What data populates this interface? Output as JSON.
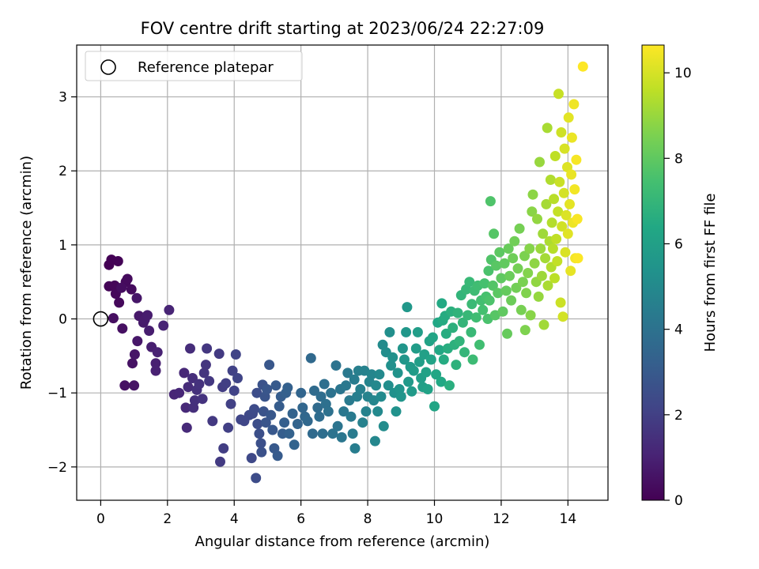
{
  "chart_data": {
    "type": "scatter",
    "title": "FOV centre drift starting at 2023/06/24 22:27:09",
    "xlabel": "Angular distance from reference (arcmin)",
    "ylabel": "Rotation from reference (arcmin)",
    "xlim": [
      -0.72,
      15.2
    ],
    "ylim": [
      -2.45,
      3.7
    ],
    "x_ticks": [
      0,
      2,
      4,
      6,
      8,
      10,
      12,
      14
    ],
    "y_ticks": [
      -2,
      -1,
      0,
      1,
      2,
      3
    ],
    "grid": true,
    "legend": {
      "placement": "top-left",
      "entries": [
        "Reference platepar"
      ]
    },
    "reference_point": {
      "x": 0,
      "y": 0
    },
    "colorbar": {
      "label": "Hours from first FF file",
      "range": [
        0,
        10.65
      ],
      "ticks": [
        0,
        2,
        4,
        6,
        8,
        10
      ],
      "colormap": "viridis"
    },
    "series": [
      {
        "points": [
          [
            0.25,
            0.73
          ],
          [
            0.32,
            0.8
          ],
          [
            0.52,
            0.78
          ],
          [
            0.25,
            0.44
          ],
          [
            0.42,
            0.45
          ],
          [
            0.45,
            0.34
          ],
          [
            0.55,
            0.22
          ],
          [
            0.75,
            0.5
          ],
          [
            0.8,
            0.54
          ],
          [
            0.92,
            0.4
          ],
          [
            0.62,
            0.42
          ],
          [
            0.38,
            0.01
          ],
          [
            0.65,
            -0.13
          ],
          [
            0.72,
            -0.9
          ],
          [
            0.95,
            -0.6
          ],
          [
            1.0,
            -0.9
          ],
          [
            1.02,
            -0.48
          ],
          [
            1.08,
            0.28
          ],
          [
            1.1,
            -0.3
          ],
          [
            1.15,
            0.04
          ],
          [
            1.28,
            -0.05
          ],
          [
            1.32,
            -0.01
          ],
          [
            1.4,
            0.05
          ],
          [
            1.45,
            -0.16
          ],
          [
            1.52,
            -0.38
          ],
          [
            1.65,
            -0.6
          ],
          [
            1.65,
            -0.7
          ],
          [
            1.7,
            -0.45
          ],
          [
            1.88,
            -0.09
          ],
          [
            2.05,
            0.12
          ],
          [
            2.2,
            -1.02
          ],
          [
            2.35,
            -1.0
          ],
          [
            2.5,
            -0.73
          ],
          [
            2.55,
            -1.2
          ],
          [
            2.58,
            -1.47
          ],
          [
            2.62,
            -0.92
          ],
          [
            2.68,
            -0.4
          ],
          [
            2.75,
            -0.8
          ],
          [
            2.78,
            -1.2
          ],
          [
            2.82,
            -1.1
          ],
          [
            2.88,
            -0.96
          ],
          [
            2.95,
            -0.88
          ],
          [
            3.05,
            -1.08
          ],
          [
            3.1,
            -0.73
          ],
          [
            3.15,
            -0.62
          ],
          [
            3.18,
            -0.4
          ],
          [
            3.25,
            -0.84
          ],
          [
            3.35,
            -1.38
          ],
          [
            3.55,
            -0.47
          ],
          [
            3.58,
            -1.93
          ],
          [
            3.65,
            -0.92
          ],
          [
            3.68,
            -1.75
          ],
          [
            3.75,
            -0.87
          ],
          [
            3.82,
            -1.47
          ],
          [
            3.9,
            -1.15
          ],
          [
            3.95,
            -0.7
          ],
          [
            4.0,
            -0.97
          ],
          [
            4.05,
            -0.48
          ],
          [
            4.1,
            -0.8
          ],
          [
            4.2,
            -1.36
          ],
          [
            4.3,
            -1.38
          ],
          [
            4.45,
            -1.3
          ],
          [
            4.52,
            -1.88
          ],
          [
            4.55,
            -1.28
          ],
          [
            4.6,
            -1.22
          ],
          [
            4.65,
            -2.15
          ],
          [
            4.68,
            -1.0
          ],
          [
            4.7,
            -1.42
          ],
          [
            4.75,
            -1.55
          ],
          [
            4.8,
            -1.68
          ],
          [
            4.82,
            -1.8
          ],
          [
            4.85,
            -0.89
          ],
          [
            4.88,
            -1.25
          ],
          [
            4.92,
            -1.05
          ],
          [
            4.95,
            -1.4
          ],
          [
            4.98,
            -0.95
          ],
          [
            5.05,
            -0.62
          ],
          [
            5.1,
            -1.3
          ],
          [
            5.15,
            -1.5
          ],
          [
            5.2,
            -1.75
          ],
          [
            5.25,
            -0.9
          ],
          [
            5.3,
            -1.85
          ],
          [
            5.35,
            -1.18
          ],
          [
            5.4,
            -1.05
          ],
          [
            5.45,
            -1.55
          ],
          [
            5.5,
            -1.4
          ],
          [
            5.55,
            -1.0
          ],
          [
            5.6,
            -0.93
          ],
          [
            5.65,
            -1.55
          ],
          [
            5.75,
            -1.28
          ],
          [
            5.8,
            -1.7
          ],
          [
            5.9,
            -1.42
          ],
          [
            6.0,
            -1.0
          ],
          [
            6.05,
            -1.2
          ],
          [
            6.12,
            -1.32
          ],
          [
            6.2,
            -1.38
          ],
          [
            6.3,
            -0.53
          ],
          [
            6.35,
            -1.55
          ],
          [
            6.4,
            -0.97
          ],
          [
            6.5,
            -1.2
          ],
          [
            6.55,
            -1.32
          ],
          [
            6.6,
            -1.05
          ],
          [
            6.65,
            -1.55
          ],
          [
            6.7,
            -0.88
          ],
          [
            6.75,
            -1.15
          ],
          [
            6.82,
            -1.25
          ],
          [
            6.9,
            -1.0
          ],
          [
            6.95,
            -1.55
          ],
          [
            7.05,
            -0.63
          ],
          [
            7.1,
            -1.45
          ],
          [
            7.18,
            -0.95
          ],
          [
            7.22,
            -1.6
          ],
          [
            7.28,
            -1.25
          ],
          [
            7.35,
            -0.9
          ],
          [
            7.4,
            -0.73
          ],
          [
            7.45,
            -1.1
          ],
          [
            7.5,
            -1.32
          ],
          [
            7.55,
            -1.55
          ],
          [
            7.6,
            -0.82
          ],
          [
            7.62,
            -1.75
          ],
          [
            7.68,
            -1.05
          ],
          [
            7.72,
            -0.7
          ],
          [
            7.78,
            -0.95
          ],
          [
            7.85,
            -1.4
          ],
          [
            7.9,
            -0.7
          ],
          [
            7.95,
            -1.25
          ],
          [
            8.0,
            -1.05
          ],
          [
            8.05,
            -0.85
          ],
          [
            8.12,
            -0.75
          ],
          [
            8.18,
            -1.1
          ],
          [
            8.22,
            -1.65
          ],
          [
            8.25,
            -0.9
          ],
          [
            8.3,
            -1.25
          ],
          [
            8.35,
            -0.75
          ],
          [
            8.4,
            -1.05
          ],
          [
            8.45,
            -0.35
          ],
          [
            8.48,
            -1.45
          ],
          [
            8.55,
            -0.45
          ],
          [
            8.62,
            -0.9
          ],
          [
            8.66,
            -0.18
          ],
          [
            8.7,
            -0.63
          ],
          [
            8.75,
            -0.52
          ],
          [
            8.8,
            -1.0
          ],
          [
            8.85,
            -1.25
          ],
          [
            8.9,
            -0.73
          ],
          [
            8.95,
            -0.95
          ],
          [
            9.0,
            -1.05
          ],
          [
            9.05,
            -0.4
          ],
          [
            9.1,
            -0.55
          ],
          [
            9.15,
            -0.18
          ],
          [
            9.18,
            0.16
          ],
          [
            9.22,
            -0.85
          ],
          [
            9.28,
            -0.65
          ],
          [
            9.32,
            -0.98
          ],
          [
            9.38,
            -0.7
          ],
          [
            9.45,
            -0.4
          ],
          [
            9.5,
            -0.18
          ],
          [
            9.55,
            -0.58
          ],
          [
            9.6,
            -0.8
          ],
          [
            9.65,
            -0.92
          ],
          [
            9.7,
            -0.48
          ],
          [
            9.75,
            -0.72
          ],
          [
            9.8,
            -0.95
          ],
          [
            9.85,
            -0.3
          ],
          [
            9.9,
            -0.55
          ],
          [
            9.95,
            -0.25
          ],
          [
            10.0,
            -1.18
          ],
          [
            10.05,
            -0.75
          ],
          [
            10.1,
            -0.05
          ],
          [
            10.15,
            -0.42
          ],
          [
            10.2,
            -0.85
          ],
          [
            10.22,
            0.21
          ],
          [
            10.25,
            -0.02
          ],
          [
            10.28,
            -0.55
          ],
          [
            10.32,
            0.04
          ],
          [
            10.35,
            -0.2
          ],
          [
            10.4,
            -0.4
          ],
          [
            10.45,
            -0.9
          ],
          [
            10.5,
            0.1
          ],
          [
            10.55,
            -0.12
          ],
          [
            10.6,
            -0.35
          ],
          [
            10.65,
            -0.62
          ],
          [
            10.7,
            0.08
          ],
          [
            10.75,
            -0.3
          ],
          [
            10.8,
            0.32
          ],
          [
            10.85,
            -0.05
          ],
          [
            10.9,
            -0.45
          ],
          [
            10.95,
            0.4
          ],
          [
            11.0,
            0.05
          ],
          [
            11.05,
            0.5
          ],
          [
            11.1,
            -0.18
          ],
          [
            11.12,
            0.2
          ],
          [
            11.15,
            -0.55
          ],
          [
            11.2,
            0.38
          ],
          [
            11.25,
            0.02
          ],
          [
            11.3,
            0.45
          ],
          [
            11.35,
            -0.35
          ],
          [
            11.4,
            0.25
          ],
          [
            11.45,
            0.12
          ],
          [
            11.5,
            0.48
          ],
          [
            11.55,
            0.3
          ],
          [
            11.6,
            0.0
          ],
          [
            11.62,
            0.65
          ],
          [
            11.65,
            0.25
          ],
          [
            11.68,
            1.59
          ],
          [
            11.7,
            0.8
          ],
          [
            11.75,
            0.45
          ],
          [
            11.78,
            1.15
          ],
          [
            11.82,
            0.05
          ],
          [
            11.85,
            0.72
          ],
          [
            11.9,
            0.35
          ],
          [
            11.95,
            0.9
          ],
          [
            12.0,
            0.55
          ],
          [
            12.05,
            0.1
          ],
          [
            12.1,
            0.75
          ],
          [
            12.15,
            0.38
          ],
          [
            12.18,
            -0.2
          ],
          [
            12.22,
            0.95
          ],
          [
            12.25,
            0.58
          ],
          [
            12.3,
            0.25
          ],
          [
            12.35,
            0.82
          ],
          [
            12.4,
            1.05
          ],
          [
            12.45,
            0.42
          ],
          [
            12.5,
            0.68
          ],
          [
            12.55,
            1.22
          ],
          [
            12.6,
            0.12
          ],
          [
            12.65,
            0.5
          ],
          [
            12.7,
            0.85
          ],
          [
            12.72,
            -0.15
          ],
          [
            12.75,
            0.35
          ],
          [
            12.8,
            0.62
          ],
          [
            12.85,
            0.95
          ],
          [
            12.88,
            0.05
          ],
          [
            12.92,
            1.45
          ],
          [
            12.95,
            1.68
          ],
          [
            13.0,
            0.75
          ],
          [
            13.05,
            0.5
          ],
          [
            13.08,
            1.35
          ],
          [
            13.12,
            0.3
          ],
          [
            13.15,
            2.12
          ],
          [
            13.18,
            0.95
          ],
          [
            13.22,
            0.58
          ],
          [
            13.25,
            1.15
          ],
          [
            13.28,
            -0.08
          ],
          [
            13.32,
            0.82
          ],
          [
            13.35,
            1.55
          ],
          [
            13.38,
            2.58
          ],
          [
            13.4,
            0.45
          ],
          [
            13.45,
            1.05
          ],
          [
            13.48,
            1.88
          ],
          [
            13.5,
            0.7
          ],
          [
            13.52,
            1.3
          ],
          [
            13.55,
            0.95
          ],
          [
            13.58,
            1.62
          ],
          [
            13.6,
            0.55
          ],
          [
            13.62,
            2.2
          ],
          [
            13.65,
            1.08
          ],
          [
            13.68,
            0.78
          ],
          [
            13.7,
            1.45
          ],
          [
            13.72,
            3.04
          ],
          [
            13.75,
            1.85
          ],
          [
            13.78,
            0.22
          ],
          [
            13.8,
            2.52
          ],
          [
            13.82,
            1.25
          ],
          [
            13.85,
            0.03
          ],
          [
            13.88,
            1.7
          ],
          [
            13.9,
            2.3
          ],
          [
            13.92,
            0.9
          ],
          [
            13.95,
            1.4
          ],
          [
            13.98,
            2.05
          ],
          [
            14.0,
            1.15
          ],
          [
            14.02,
            2.72
          ],
          [
            14.05,
            1.55
          ],
          [
            14.08,
            0.65
          ],
          [
            14.1,
            1.95
          ],
          [
            14.12,
            2.45
          ],
          [
            14.15,
            1.3
          ],
          [
            14.18,
            2.9
          ],
          [
            14.2,
            1.75
          ],
          [
            14.22,
            0.82
          ],
          [
            14.25,
            2.15
          ],
          [
            14.28,
            1.35
          ],
          [
            14.3,
            0.82
          ],
          [
            14.45,
            3.41
          ]
        ]
      }
    ]
  }
}
